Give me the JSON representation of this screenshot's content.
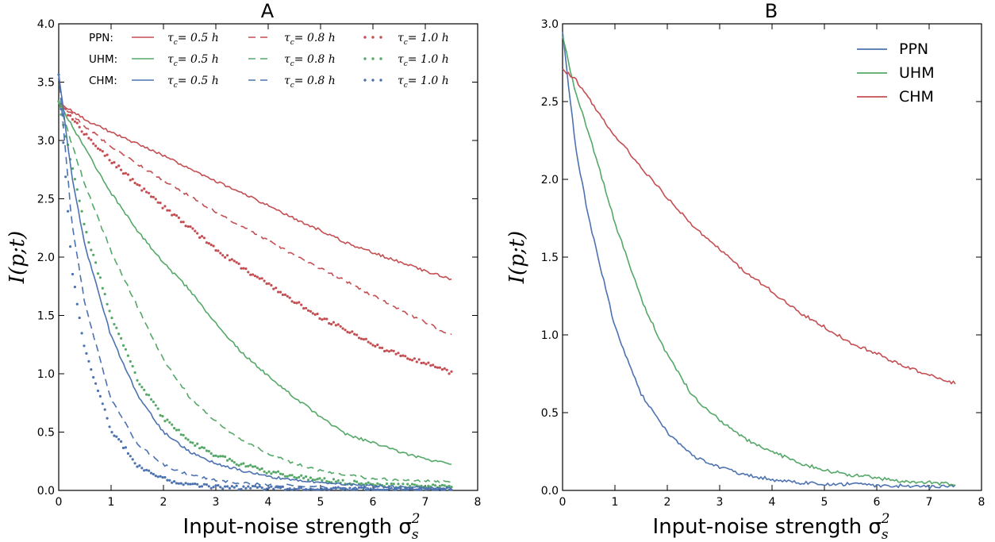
{
  "figure": {
    "panels": [
      {
        "title": "A",
        "xlabel": "Input-noise strength σ",
        "xlabel_sub": "s",
        "xlabel_sup": "2",
        "ylabel": "I(p;t)"
      },
      {
        "title": "B",
        "xlabel": "Input-noise strength σ",
        "xlabel_sub": "s",
        "xlabel_sup": "2",
        "ylabel": "I(p;t)"
      }
    ],
    "legendA": {
      "rows": [
        "PPN:",
        "UHM:",
        "CHM:"
      ],
      "entry_prefix": "τ",
      "entry_sub": "c",
      "entries": [
        "= 0.5 h",
        "= 0.8 h",
        "= 1.0 h"
      ]
    },
    "colors": {
      "red": "#c44e52",
      "green": "#55a868",
      "blue": "#4c72b0"
    }
  },
  "chart_data": [
    {
      "type": "line",
      "title": "A",
      "xlabel": "Input-noise strength σ_s^2",
      "ylabel": "I(p;t)",
      "xlim": [
        0,
        8
      ],
      "ylim": [
        0,
        4.0
      ],
      "x_ticks": [
        "0",
        "1",
        "2",
        "3",
        "4",
        "5",
        "6",
        "7",
        "8"
      ],
      "y_ticks": [
        "0.0",
        "0.5",
        "1.0",
        "1.5",
        "2.0",
        "2.5",
        "3.0",
        "3.5",
        "4.0"
      ],
      "legend": "top",
      "grid": false,
      "series": [
        {
          "name": "PPN: τc = 0.5 h",
          "model": "PPN",
          "style": "solid",
          "color": "#c44e52",
          "x": [
            0,
            0.5,
            1,
            1.5,
            2,
            2.5,
            3,
            3.5,
            4,
            4.5,
            5,
            5.5,
            6,
            6.5,
            7,
            7.5
          ],
          "y": [
            3.33,
            3.18,
            3.07,
            2.97,
            2.87,
            2.76,
            2.65,
            2.55,
            2.44,
            2.33,
            2.23,
            2.12,
            2.04,
            1.96,
            1.88,
            1.81
          ]
        },
        {
          "name": "PPN: τc = 0.8 h",
          "model": "PPN",
          "style": "dashed",
          "color": "#c44e52",
          "x": [
            0,
            0.5,
            1,
            1.5,
            2,
            2.5,
            3,
            3.5,
            4,
            4.5,
            5,
            5.5,
            6,
            6.5,
            7,
            7.5
          ],
          "y": [
            3.33,
            3.12,
            2.95,
            2.8,
            2.66,
            2.52,
            2.39,
            2.26,
            2.14,
            2.02,
            1.9,
            1.79,
            1.67,
            1.55,
            1.44,
            1.33
          ]
        },
        {
          "name": "PPN: τc = 1.0 h",
          "model": "PPN",
          "style": "dotted",
          "color": "#c44e52",
          "x": [
            0,
            0.5,
            1,
            1.5,
            2,
            2.5,
            3,
            3.5,
            4,
            4.5,
            5,
            5.5,
            6,
            6.5,
            7,
            7.5
          ],
          "y": [
            3.33,
            3.05,
            2.83,
            2.62,
            2.43,
            2.25,
            2.07,
            1.91,
            1.77,
            1.62,
            1.48,
            1.37,
            1.25,
            1.16,
            1.09,
            1.01
          ]
        },
        {
          "name": "UHM: τc = 0.5 h",
          "model": "UHM",
          "style": "solid",
          "color": "#55a868",
          "x": [
            0,
            0.5,
            1,
            1.5,
            2,
            2.5,
            3,
            3.5,
            4,
            4.5,
            5,
            5.5,
            6,
            6.5,
            7,
            7.5
          ],
          "y": [
            3.33,
            2.93,
            2.55,
            2.23,
            1.95,
            1.72,
            1.43,
            1.18,
            0.98,
            0.8,
            0.63,
            0.48,
            0.41,
            0.33,
            0.27,
            0.22
          ]
        },
        {
          "name": "UHM: τc = 0.8 h",
          "model": "UHM",
          "style": "dashed",
          "color": "#55a868",
          "x": [
            0,
            0.5,
            1,
            1.5,
            2,
            2.5,
            3,
            3.5,
            4,
            4.5,
            5,
            5.5,
            6,
            6.5,
            7,
            7.5
          ],
          "y": [
            3.33,
            2.62,
            2.05,
            1.58,
            1.12,
            0.8,
            0.59,
            0.43,
            0.32,
            0.23,
            0.17,
            0.13,
            0.1,
            0.09,
            0.08,
            0.07
          ]
        },
        {
          "name": "UHM: τc = 1.0 h",
          "model": "UHM",
          "style": "dotted",
          "color": "#55a868",
          "x": [
            0,
            0.5,
            1,
            1.5,
            2,
            2.5,
            3,
            3.5,
            4,
            4.5,
            5,
            5.5,
            6,
            6.5,
            7,
            7.5
          ],
          "y": [
            3.33,
            2.25,
            1.5,
            0.95,
            0.62,
            0.42,
            0.3,
            0.22,
            0.16,
            0.12,
            0.09,
            0.07,
            0.05,
            0.04,
            0.04,
            0.03
          ]
        },
        {
          "name": "CHM: τc = 0.5 h",
          "model": "CHM",
          "style": "solid",
          "color": "#4c72b0",
          "x": [
            0,
            0.25,
            0.5,
            1,
            1.5,
            2,
            2.5,
            3,
            3.5,
            4,
            4.5,
            5,
            5.5,
            6,
            6.5,
            7,
            7.5
          ],
          "y": [
            3.57,
            2.7,
            2.1,
            1.32,
            0.82,
            0.5,
            0.33,
            0.23,
            0.17,
            0.12,
            0.09,
            0.07,
            0.05,
            0.04,
            0.03,
            0.02,
            0.02
          ]
        },
        {
          "name": "CHM: τc = 0.8 h",
          "model": "CHM",
          "style": "dashed",
          "color": "#4c72b0",
          "x": [
            0,
            0.25,
            0.5,
            1,
            1.5,
            2,
            2.5,
            3,
            3.5,
            4,
            4.5,
            5,
            5.5,
            6,
            6.5,
            7,
            7.5
          ],
          "y": [
            3.57,
            2.3,
            1.6,
            0.78,
            0.4,
            0.22,
            0.13,
            0.09,
            0.06,
            0.05,
            0.04,
            0.03,
            0.02,
            0.02,
            0.02,
            0.01,
            0.01
          ]
        },
        {
          "name": "CHM: τc = 1.0 h",
          "model": "CHM",
          "style": "dotted",
          "color": "#4c72b0",
          "x": [
            0,
            0.25,
            0.5,
            1,
            1.5,
            2,
            2.5,
            3,
            3.5,
            4,
            4.5,
            5,
            5.5,
            6,
            6.5,
            7,
            7.5
          ],
          "y": [
            3.57,
            1.9,
            1.2,
            0.52,
            0.22,
            0.1,
            0.05,
            0.03,
            0.02,
            0.02,
            0.01,
            0.01,
            0.01,
            0.01,
            0.01,
            0.01,
            0.01
          ]
        }
      ]
    },
    {
      "type": "line",
      "title": "B",
      "xlabel": "Input-noise strength σ_s^2",
      "ylabel": "I(p;t)",
      "xlim": [
        0,
        8
      ],
      "ylim": [
        0,
        3.0
      ],
      "x_ticks": [
        "0",
        "1",
        "2",
        "3",
        "4",
        "5",
        "6",
        "7",
        "8"
      ],
      "y_ticks": [
        "0.0",
        "0.5",
        "1.0",
        "1.5",
        "2.0",
        "2.5",
        "3.0"
      ],
      "legend": "top-right",
      "grid": false,
      "series": [
        {
          "name": "PPN",
          "color": "#4c72b0",
          "x": [
            0,
            0.25,
            0.5,
            1,
            1.5,
            2,
            2.5,
            3,
            3.5,
            4,
            4.5,
            5,
            5.5,
            6,
            6.5,
            7,
            7.5
          ],
          "y": [
            2.95,
            2.2,
            1.75,
            1.05,
            0.62,
            0.37,
            0.22,
            0.15,
            0.1,
            0.07,
            0.05,
            0.04,
            0.04,
            0.03,
            0.03,
            0.02,
            0.03
          ]
        },
        {
          "name": "UHM",
          "color": "#55a868",
          "x": [
            0,
            0.25,
            0.5,
            1,
            1.5,
            2,
            2.5,
            3,
            3.5,
            4,
            4.5,
            5,
            5.5,
            6,
            6.5,
            7,
            7.5
          ],
          "y": [
            2.92,
            2.55,
            2.3,
            1.72,
            1.23,
            0.87,
            0.6,
            0.45,
            0.33,
            0.25,
            0.18,
            0.13,
            0.1,
            0.08,
            0.06,
            0.05,
            0.04
          ]
        },
        {
          "name": "CHM",
          "color": "#c44e52",
          "x": [
            0,
            0.25,
            0.5,
            1,
            1.5,
            2,
            2.5,
            3,
            3.5,
            4,
            4.5,
            5,
            5.5,
            6,
            6.5,
            7,
            7.5
          ],
          "y": [
            2.71,
            2.64,
            2.52,
            2.28,
            2.08,
            1.88,
            1.7,
            1.55,
            1.4,
            1.28,
            1.15,
            1.05,
            0.95,
            0.88,
            0.8,
            0.74,
            0.69
          ]
        }
      ]
    }
  ]
}
